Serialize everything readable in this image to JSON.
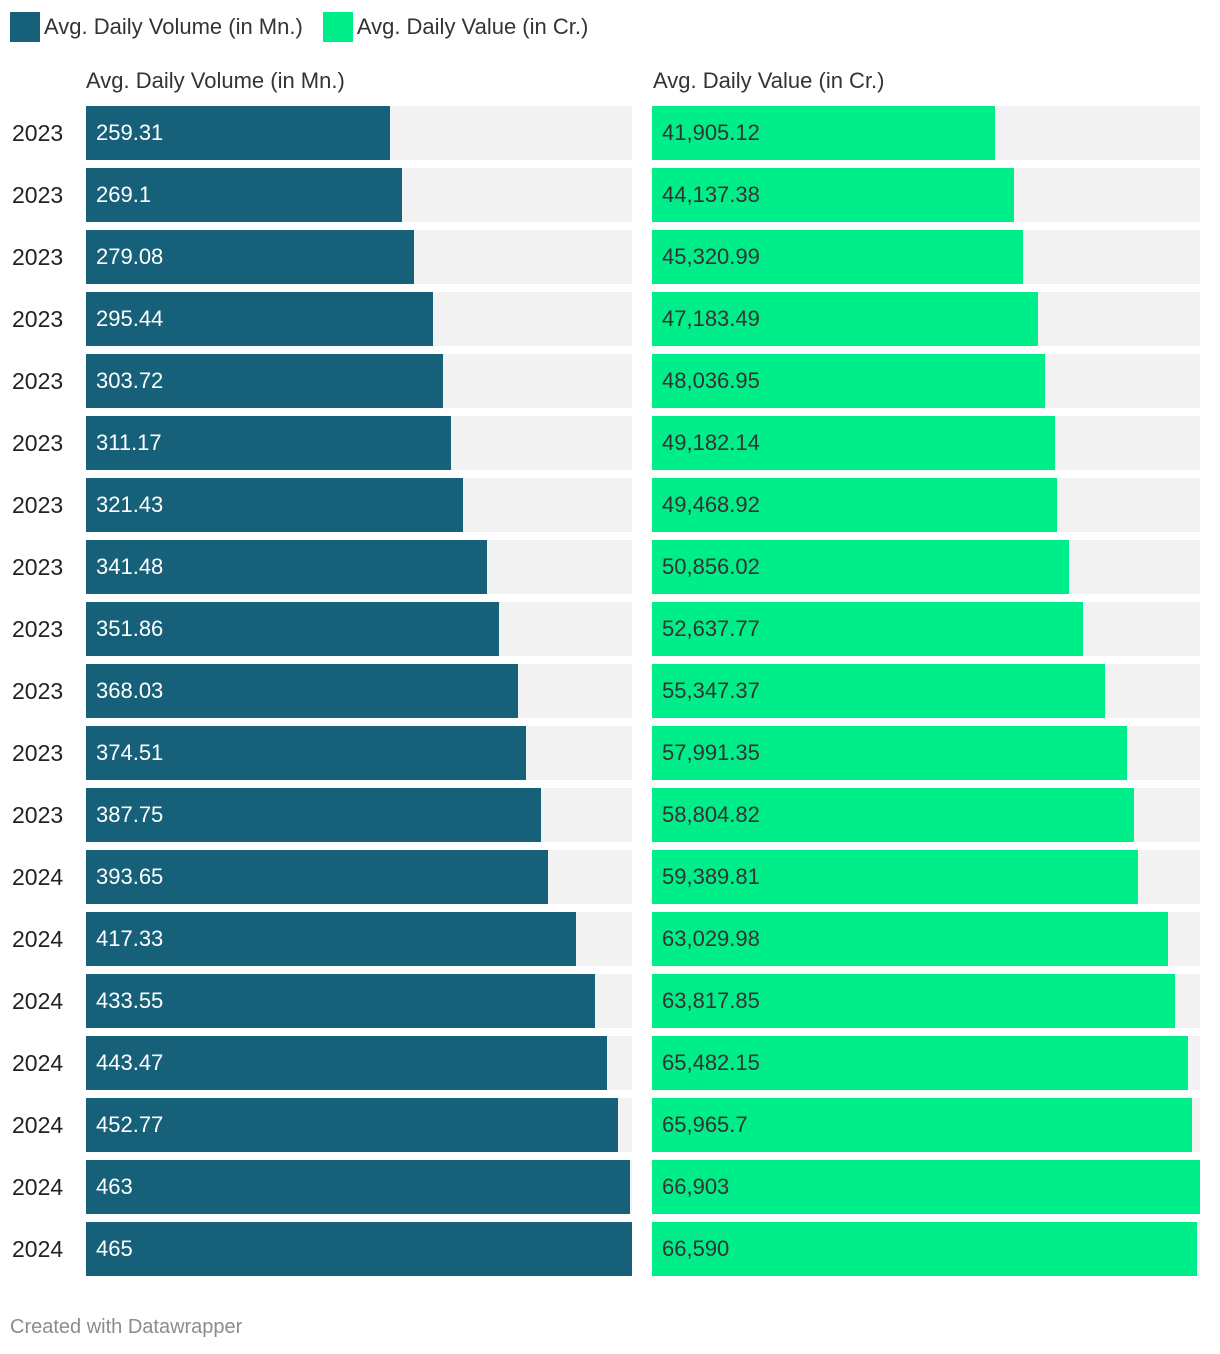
{
  "colors": {
    "volume": "#17607a",
    "value": "#00ee89",
    "track": "#f2f2f2"
  },
  "legend": [
    {
      "label": "Avg. Daily Volume (in Mn.)",
      "color": "#17607a"
    },
    {
      "label": "Avg. Daily Value (in Cr.)",
      "color": "#00ee89"
    }
  ],
  "credit": "Created with Datawrapper",
  "chart_data": {
    "type": "bar",
    "orientation": "horizontal",
    "categories": [
      "2023",
      "2023",
      "2023",
      "2023",
      "2023",
      "2023",
      "2023",
      "2023",
      "2023",
      "2023",
      "2023",
      "2023",
      "2024",
      "2024",
      "2024",
      "2024",
      "2024",
      "2024",
      "2024"
    ],
    "series": [
      {
        "name": "Avg. Daily Volume (in Mn.)",
        "title": "Avg. Daily Volume (in Mn.)",
        "values": [
          259.31,
          269.1,
          279.08,
          295.44,
          303.72,
          311.17,
          321.43,
          341.48,
          351.86,
          368.03,
          374.51,
          387.75,
          393.65,
          417.33,
          433.55,
          443.47,
          452.77,
          463,
          465
        ],
        "labels": [
          "259.31",
          "269.1",
          "279.08",
          "295.44",
          "303.72",
          "311.17",
          "321.43",
          "341.48",
          "351.86",
          "368.03",
          "374.51",
          "387.75",
          "393.65",
          "417.33",
          "433.55",
          "443.47",
          "452.77",
          "463",
          "465"
        ],
        "xlim": [
          0,
          465
        ]
      },
      {
        "name": "Avg. Daily Value (in Cr.)",
        "title": "Avg. Daily Value (in Cr.)",
        "values": [
          41905.12,
          44137.38,
          45320.99,
          47183.49,
          48036.95,
          49182.14,
          49468.92,
          50856.02,
          52637.77,
          55347.37,
          57991.35,
          58804.82,
          59389.81,
          63029.98,
          63817.85,
          65482.15,
          65965.7,
          66903,
          66590
        ],
        "labels": [
          "41,905.12",
          "44,137.38",
          "45,320.99",
          "47,183.49",
          "48,036.95",
          "49,182.14",
          "49,468.92",
          "50,856.02",
          "52,637.77",
          "55,347.37",
          "57,991.35",
          "58,804.82",
          "59,389.81",
          "63,029.98",
          "63,817.85",
          "65,482.15",
          "65,965.7",
          "66,903",
          "66,590"
        ],
        "xlim": [
          0,
          66903
        ]
      }
    ],
    "xlabel": "",
    "ylabel": "",
    "legend_position": "top-left"
  }
}
